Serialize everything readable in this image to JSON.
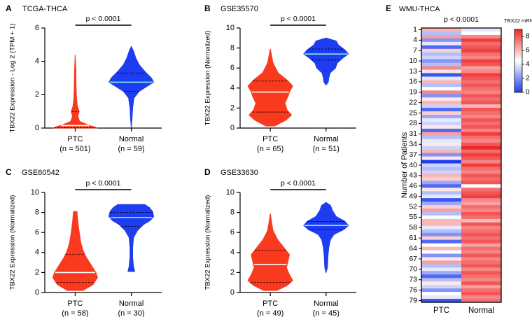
{
  "figure_colors": {
    "ptc": "#fa3a1e",
    "normal": "#1f3df0",
    "median_line": "#ffffff",
    "median_line_normal": "#7ff2e2",
    "quartile_line": "#000000"
  },
  "chart_data": [
    {
      "panel": "A",
      "type": "violin",
      "title": "TCGA-THCA",
      "ylabel": "TBX22 Expression - Log 2 (TPM + 1)",
      "ylim": [
        0,
        6
      ],
      "yticks": [
        0,
        2,
        4,
        6
      ],
      "significance": "p < 0.0001",
      "groups": [
        {
          "name": "PTC",
          "n_label": "(n = 501)",
          "min": 0,
          "max": 4.4,
          "median": 0.15,
          "q1": 0.02,
          "q3": 1.0,
          "density": [
            [
              0,
              1.0
            ],
            [
              0.2,
              0.55
            ],
            [
              0.4,
              0.2
            ],
            [
              0.7,
              0.12
            ],
            [
              1.0,
              0.18
            ],
            [
              1.3,
              0.1
            ],
            [
              1.8,
              0.06
            ],
            [
              2.5,
              0.04
            ],
            [
              3.5,
              0.03
            ],
            [
              4.4,
              0.0
            ]
          ]
        },
        {
          "name": "Normal",
          "n_label": "(n = 59)",
          "min": 0,
          "max": 4.9,
          "median": 2.75,
          "q1": 2.2,
          "q3": 3.3,
          "density": [
            [
              0,
              0.0
            ],
            [
              0.5,
              0.03
            ],
            [
              1.2,
              0.06
            ],
            [
              1.8,
              0.12
            ],
            [
              2.2,
              0.35
            ],
            [
              2.5,
              0.7
            ],
            [
              2.75,
              1.0
            ],
            [
              3.0,
              0.9
            ],
            [
              3.4,
              0.6
            ],
            [
              3.8,
              0.35
            ],
            [
              4.2,
              0.2
            ],
            [
              4.6,
              0.1
            ],
            [
              4.9,
              0.0
            ]
          ]
        }
      ]
    },
    {
      "panel": "B",
      "type": "violin",
      "title": "GSE35570",
      "ylabel": "TBX22 Expression  (Normalized)",
      "ylim": [
        0,
        10
      ],
      "yticks": [
        0,
        2,
        4,
        6,
        8,
        10
      ],
      "significance": "p < 0.0001",
      "groups": [
        {
          "name": "PTC",
          "n_label": "(n = 65)",
          "min": 0.2,
          "max": 7.9,
          "median": 3.6,
          "q1": 1.6,
          "q3": 4.7,
          "density": [
            [
              0.2,
              0.2
            ],
            [
              0.8,
              0.7
            ],
            [
              1.3,
              0.95
            ],
            [
              1.8,
              0.75
            ],
            [
              2.5,
              0.65
            ],
            [
              3.2,
              0.8
            ],
            [
              3.6,
              0.85
            ],
            [
              4.2,
              1.0
            ],
            [
              4.8,
              0.75
            ],
            [
              5.5,
              0.35
            ],
            [
              6.5,
              0.12
            ],
            [
              7.2,
              0.06
            ],
            [
              7.9,
              0.0
            ]
          ]
        },
        {
          "name": "Normal",
          "n_label": "(n = 51)",
          "min": 4.3,
          "max": 9.0,
          "median": 7.4,
          "q1": 6.8,
          "q3": 7.9,
          "density": [
            [
              4.3,
              0.0
            ],
            [
              4.6,
              0.1
            ],
            [
              5.0,
              0.12
            ],
            [
              5.5,
              0.18
            ],
            [
              6.0,
              0.42
            ],
            [
              6.5,
              0.5
            ],
            [
              7.0,
              0.75
            ],
            [
              7.4,
              1.0
            ],
            [
              7.8,
              0.85
            ],
            [
              8.3,
              0.55
            ],
            [
              8.7,
              0.45
            ],
            [
              9.0,
              0.0
            ]
          ]
        }
      ]
    },
    {
      "panel": "C",
      "type": "violin",
      "title": "GSE60542",
      "ylabel": "TBX22 Expression  (Normalized)",
      "ylim": [
        0,
        10
      ],
      "yticks": [
        0,
        2,
        4,
        6,
        8,
        10
      ],
      "significance": "p < 0.0001",
      "groups": [
        {
          "name": "PTC",
          "n_label": "(n = 58)",
          "min": 0.2,
          "max": 8.1,
          "median": 2.0,
          "q1": 1.0,
          "q3": 3.8,
          "density": [
            [
              0.2,
              0.35
            ],
            [
              0.8,
              0.8
            ],
            [
              1.5,
              1.0
            ],
            [
              2.0,
              0.92
            ],
            [
              2.8,
              0.7
            ],
            [
              3.5,
              0.5
            ],
            [
              4.2,
              0.35
            ],
            [
              5.0,
              0.25
            ],
            [
              6.0,
              0.18
            ],
            [
              7.0,
              0.12
            ],
            [
              8.1,
              0.08
            ]
          ]
        },
        {
          "name": "Normal",
          "n_label": "(n = 30)",
          "min": 2.1,
          "max": 8.8,
          "median": 7.5,
          "q1": 6.6,
          "q3": 8.0,
          "density": [
            [
              2.1,
              0.15
            ],
            [
              2.6,
              0.1
            ],
            [
              3.5,
              0.06
            ],
            [
              4.5,
              0.06
            ],
            [
              5.5,
              0.1
            ],
            [
              6.2,
              0.28
            ],
            [
              6.8,
              0.55
            ],
            [
              7.2,
              0.85
            ],
            [
              7.6,
              1.0
            ],
            [
              8.1,
              0.95
            ],
            [
              8.5,
              0.8
            ],
            [
              8.8,
              0.6
            ]
          ]
        }
      ]
    },
    {
      "panel": "D",
      "type": "violin",
      "title": "GSE33630",
      "ylabel": "TBX22 Expression  (Normalized)",
      "ylim": [
        0,
        10
      ],
      "yticks": [
        0,
        2,
        4,
        6,
        8,
        10
      ],
      "significance": "p < 0.0001",
      "groups": [
        {
          "name": "PTC",
          "n_label": "(n = 49)",
          "min": 0.2,
          "max": 7.9,
          "median": 2.8,
          "q1": 1.0,
          "q3": 4.2,
          "density": [
            [
              0.2,
              0.3
            ],
            [
              0.7,
              0.75
            ],
            [
              1.2,
              1.0
            ],
            [
              1.8,
              0.85
            ],
            [
              2.5,
              0.72
            ],
            [
              3.2,
              0.8
            ],
            [
              3.8,
              0.85
            ],
            [
              4.5,
              0.6
            ],
            [
              5.3,
              0.32
            ],
            [
              6.2,
              0.12
            ],
            [
              7.0,
              0.06
            ],
            [
              7.9,
              0.0
            ]
          ]
        },
        {
          "name": "Normal",
          "n_label": "(n = 45)",
          "min": 2.0,
          "max": 9.0,
          "median": 6.7,
          "q1": 6.3,
          "q3": 7.1,
          "density": [
            [
              2.0,
              0.0
            ],
            [
              2.5,
              0.06
            ],
            [
              3.5,
              0.08
            ],
            [
              4.5,
              0.12
            ],
            [
              5.3,
              0.2
            ],
            [
              5.8,
              0.35
            ],
            [
              6.3,
              0.8
            ],
            [
              6.7,
              1.0
            ],
            [
              7.1,
              0.85
            ],
            [
              7.6,
              0.45
            ],
            [
              8.2,
              0.28
            ],
            [
              8.7,
              0.2
            ],
            [
              9.0,
              0.0
            ]
          ]
        }
      ]
    },
    {
      "panel": "E",
      "type": "heatmap",
      "title": "WMU-THCA",
      "ylabel": "Number of Patients",
      "columns": [
        "PTC",
        "Normal"
      ],
      "significance": "p < 0.0001",
      "row_ticks": [
        "1",
        "4",
        "7",
        "10",
        "13",
        "16",
        "19",
        "22",
        "25",
        "28",
        "31",
        "34",
        "37",
        "40",
        "43",
        "46",
        "49",
        "52",
        "55",
        "58",
        "61",
        "64",
        "67",
        "70",
        "73",
        "76",
        "79"
      ],
      "colorbar": {
        "label": "TBX22 mRNA",
        "range": [
          0,
          9
        ],
        "ticks": [
          0,
          2,
          4,
          6,
          8
        ]
      },
      "ptc_values": [
        6,
        3,
        6.5,
        2,
        4,
        1,
        5.5,
        3,
        3.5,
        2,
        3,
        7,
        5,
        0.5,
        4,
        6,
        3,
        4.5,
        7,
        2,
        5,
        6,
        3.5,
        1,
        5.5,
        2.5,
        4,
        3.5,
        5,
        1,
        6.5,
        3,
        4,
        5,
        3.5,
        6,
        2,
        5,
        0,
        3.5,
        3,
        3.5,
        6,
        5.5,
        2.5,
        1,
        5,
        3,
        4,
        0.5,
        2.5,
        5.5,
        6.5,
        3,
        4.5,
        6,
        6,
        4,
        3,
        2,
        5.5,
        1,
        4.5,
        6,
        4.5,
        2,
        5,
        6.5,
        3,
        4,
        2.5,
        1,
        3,
        5,
        3.5,
        2,
        4.5,
        4,
        0.5
      ],
      "normal_values": [
        4,
        4.5,
        7,
        8.5,
        7.5,
        8,
        8.5,
        7.5,
        7,
        8.5,
        8,
        6.5,
        7,
        8.5,
        8,
        7.5,
        8,
        7.5,
        7,
        8,
        7.5,
        8,
        6,
        8,
        7.5,
        7,
        8,
        7.5,
        8,
        7,
        8.5,
        7.5,
        7,
        8,
        9,
        7.5,
        8.5,
        8,
        7,
        8.5,
        7.5,
        7,
        8,
        7.5,
        8,
        4.5,
        7.5,
        8,
        8.5,
        7,
        6.5,
        7.5,
        7,
        8,
        7.5,
        6,
        8,
        7,
        7.5,
        8,
        7.5,
        8,
        6.5,
        7.5,
        7,
        8,
        7,
        7.5,
        8,
        7,
        8,
        7.5,
        7,
        8,
        6.5,
        7.5,
        8,
        7,
        7.5
      ]
    }
  ]
}
